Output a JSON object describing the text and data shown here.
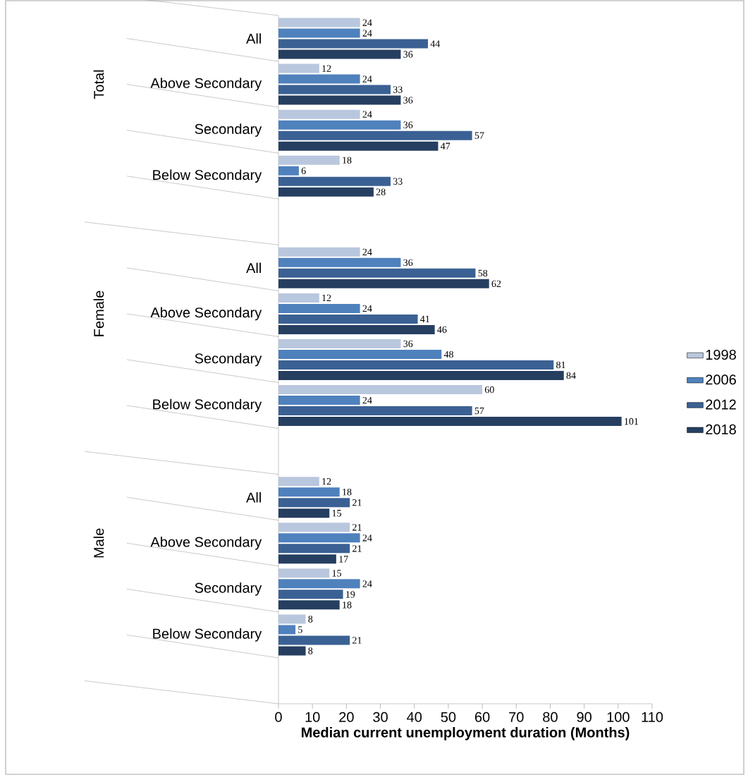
{
  "chart_data": {
    "type": "bar",
    "orientation": "horizontal",
    "xlabel": "Median current unemployment duration (Months)",
    "categories": [
      "All",
      "Above Secondary",
      "Secondary",
      "Below Secondary",
      null,
      "All",
      "Above Secondary",
      "Secondary",
      "Below Secondary",
      null,
      "All",
      "Above Secondary",
      "Secondary",
      "Below Secondary",
      null
    ],
    "annotations": [
      "Total",
      "Female",
      "Male"
    ],
    "series": [
      {
        "name": "1998",
        "color": "#b9c7de",
        "values": [
          24,
          12,
          24,
          18,
          null,
          24,
          12,
          36,
          60,
          null,
          12,
          21,
          15,
          8,
          null
        ]
      },
      {
        "name": "2006",
        "color": "#4f81bd",
        "values": [
          24,
          24,
          36,
          6,
          null,
          36,
          24,
          48,
          24,
          null,
          18,
          24,
          24,
          5,
          null
        ]
      },
      {
        "name": "2012",
        "color": "#3b6194",
        "values": [
          44,
          33,
          57,
          33,
          null,
          58,
          41,
          81,
          57,
          null,
          21,
          21,
          19,
          21,
          null
        ]
      },
      {
        "name": "2018",
        "color": "#263f61",
        "values": [
          36,
          36,
          47,
          28,
          null,
          62,
          46,
          84,
          101,
          null,
          15,
          17,
          18,
          8,
          null
        ]
      }
    ],
    "xlim": [
      0,
      110
    ],
    "xticks": [
      0,
      10,
      20,
      30,
      40,
      50,
      60,
      70,
      80,
      90,
      100,
      110
    ],
    "data_labels": true,
    "legend": "right",
    "grid": false
  }
}
